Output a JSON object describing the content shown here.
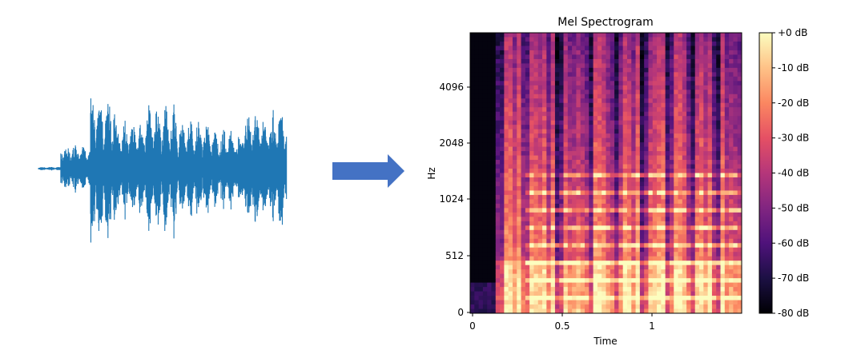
{
  "figure": {
    "arrow_color": "#4472c4",
    "waveform_color": "#1f77b4"
  },
  "chart_data": {
    "type": "heatmap",
    "title": "Mel Spectrogram",
    "xlabel": "Time",
    "ylabel": "Hz",
    "x_ticks": [
      "0",
      "0.5",
      "1"
    ],
    "x_tick_values": [
      0,
      0.5,
      1
    ],
    "xlim": [
      0,
      1.5
    ],
    "y_ticks": [
      "0",
      "512",
      "1024",
      "2048",
      "4096"
    ],
    "y_tick_values": [
      0,
      512,
      1024,
      2048,
      4096
    ],
    "y_scale": "mel",
    "colorbar": {
      "ticks": [
        "+0 dB",
        "-10 dB",
        "-20 dB",
        "-30 dB",
        "-40 dB",
        "-50 dB",
        "-60 dB",
        "-70 dB",
        "-80 dB"
      ],
      "range_db": [
        -80,
        0
      ],
      "colormap": "magma"
    },
    "waveform_segments": [
      {
        "start": 0.0,
        "end": 0.09,
        "amp": 0.02
      },
      {
        "start": 0.09,
        "end": 0.21,
        "amp": 0.28
      },
      {
        "start": 0.21,
        "end": 0.31,
        "amp": 0.85
      },
      {
        "start": 0.31,
        "end": 0.43,
        "amp": 0.55
      },
      {
        "start": 0.43,
        "end": 0.56,
        "amp": 0.72
      },
      {
        "start": 0.56,
        "end": 0.69,
        "amp": 0.55
      },
      {
        "start": 0.69,
        "end": 0.82,
        "amp": 0.45
      },
      {
        "start": 0.82,
        "end": 1.0,
        "amp": 0.65
      }
    ]
  }
}
